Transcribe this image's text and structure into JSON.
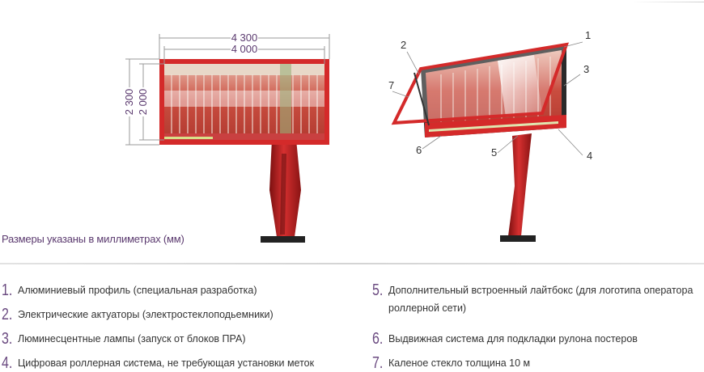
{
  "dimensions": {
    "outer_width": "4 300",
    "inner_width": "4 000",
    "outer_height": "2 300",
    "inner_height": "2 000"
  },
  "callouts": [
    "1",
    "2",
    "3",
    "4",
    "5",
    "6",
    "7"
  ],
  "caption": "Размеры указаны в миллиметрах (мм)",
  "legend": [
    {
      "num": "1.",
      "text": "Алюминиевый профиль (специальная разработка)"
    },
    {
      "num": "2.",
      "text": "Электрические актуаторы (электростеклоподьемники)"
    },
    {
      "num": "3.",
      "text": "Люминесцентные лампы (запуск от блоков ПРА)"
    },
    {
      "num": "4.",
      "text": "Цифровая роллерная система, не требующая установки меток"
    },
    {
      "num": "5.",
      "text": "Дополнительный встроенный лайтбокс (для логотипа оператора роллерной сети)"
    },
    {
      "num": "6.",
      "text": "Выдвижная система для подкладки рулона постеров"
    },
    {
      "num": "7.",
      "text": "Каленое стекло толщина 10 м"
    }
  ],
  "colors": {
    "frame": "#d42a2a",
    "accent": "#5b3a6f",
    "pole": "#c62828",
    "dark": "#2a2a2a"
  }
}
